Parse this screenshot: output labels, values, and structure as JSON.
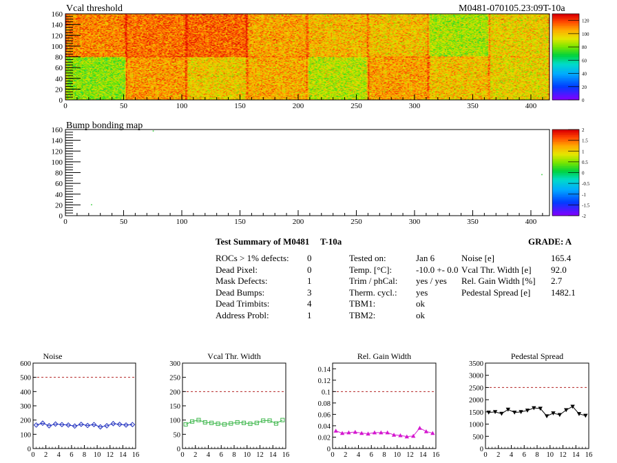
{
  "header": {
    "module_id": "M0481-070105.23:09T-10a"
  },
  "chart_data": [
    {
      "type": "heatmap",
      "title": "Vcal threshold",
      "xlabel": "",
      "ylabel": "",
      "xlim": [
        0,
        416
      ],
      "ylim": [
        0,
        160
      ],
      "x_ticks": [
        0,
        50,
        100,
        150,
        200,
        250,
        300,
        350,
        400
      ],
      "y_ticks": [
        0,
        20,
        40,
        60,
        80,
        100,
        120,
        140,
        160
      ],
      "zlim": [
        0,
        130
      ],
      "z_ticks": [
        0,
        20,
        40,
        60,
        80,
        100,
        120
      ],
      "rocs_top": [
        111,
        114,
        116,
        106,
        103,
        101,
        87,
        98
      ],
      "rocs_bottom": [
        83,
        108,
        99,
        105,
        89,
        107,
        101,
        97
      ]
    },
    {
      "type": "heatmap",
      "title": "Bump bonding map",
      "xlabel": "",
      "ylabel": "",
      "xlim": [
        0,
        416
      ],
      "ylim": [
        0,
        160
      ],
      "x_ticks": [
        0,
        50,
        100,
        150,
        200,
        250,
        300,
        350,
        400
      ],
      "y_ticks": [
        0,
        20,
        40,
        60,
        80,
        100,
        120,
        140,
        160
      ],
      "zlim": [
        -2,
        2
      ],
      "z_ticks": [
        -2,
        -1.5,
        -1,
        -0.5,
        0,
        0.5,
        1,
        1.5,
        2
      ],
      "defects": [
        {
          "x": 75,
          "y": 157
        },
        {
          "x": 22,
          "y": 20
        },
        {
          "x": 409,
          "y": 76
        }
      ]
    },
    {
      "type": "line",
      "title": "Noise",
      "color": "#1f2fbf",
      "marker": "diamond",
      "xlim": [
        0,
        16
      ],
      "ylim": [
        0,
        600
      ],
      "x_ticks": [
        0,
        2,
        4,
        6,
        8,
        10,
        12,
        14,
        16
      ],
      "y_ticks": [
        0,
        100,
        200,
        300,
        400,
        500,
        600
      ],
      "y_tick_labels": [
        "0",
        "100",
        "200",
        "300",
        "400",
        "500",
        "600"
      ],
      "limit": 500,
      "x": [
        0.5,
        1.5,
        2.5,
        3.5,
        4.5,
        5.5,
        6.5,
        7.5,
        8.5,
        9.5,
        10.5,
        11.5,
        12.5,
        13.5,
        14.5,
        15.5
      ],
      "values": [
        165,
        178,
        160,
        172,
        168,
        165,
        158,
        170,
        162,
        168,
        152,
        160,
        175,
        170,
        165,
        168
      ]
    },
    {
      "type": "line",
      "title": "Vcal Thr. Width",
      "color": "#3cb64a",
      "marker": "square",
      "xlim": [
        0,
        16
      ],
      "ylim": [
        0,
        300
      ],
      "x_ticks": [
        0,
        2,
        4,
        6,
        8,
        10,
        12,
        14,
        16
      ],
      "y_ticks": [
        0,
        50,
        100,
        150,
        200,
        250,
        300
      ],
      "y_tick_labels": [
        "0",
        "50",
        "100",
        "150",
        "200",
        "250",
        "300"
      ],
      "limit": 200,
      "x": [
        0.5,
        1.5,
        2.5,
        3.5,
        4.5,
        5.5,
        6.5,
        7.5,
        8.5,
        9.5,
        10.5,
        11.5,
        12.5,
        13.5,
        14.5,
        15.5
      ],
      "values": [
        85,
        95,
        100,
        92,
        90,
        87,
        85,
        88,
        92,
        90,
        87,
        90,
        98,
        98,
        88,
        100
      ]
    },
    {
      "type": "line",
      "title": "Rel. Gain Width",
      "color": "#d417cf",
      "marker": "triangle",
      "xlim": [
        0,
        16
      ],
      "ylim": [
        0,
        0.15
      ],
      "x_ticks": [
        0,
        2,
        4,
        6,
        8,
        10,
        12,
        14,
        16
      ],
      "y_ticks": [
        0,
        0.02,
        0.04,
        0.06,
        0.08,
        0.1,
        0.12,
        0.14
      ],
      "y_tick_labels": [
        "0",
        "0.02",
        "0.04",
        "0.06",
        "0.08",
        "0.1",
        "0.12",
        "0.14"
      ],
      "limit": 0.1,
      "x": [
        0.5,
        1.5,
        2.5,
        3.5,
        4.5,
        5.5,
        6.5,
        7.5,
        8.5,
        9.5,
        10.5,
        11.5,
        12.5,
        13.5,
        14.5,
        15.5
      ],
      "values": [
        0.031,
        0.027,
        0.028,
        0.029,
        0.027,
        0.026,
        0.028,
        0.028,
        0.028,
        0.024,
        0.023,
        0.021,
        0.022,
        0.036,
        0.03,
        0.027
      ]
    },
    {
      "type": "line",
      "title": "Pedestal Spread",
      "color": "#000000",
      "marker": "triangle-down",
      "xlim": [
        0,
        16
      ],
      "ylim": [
        0,
        3500
      ],
      "x_ticks": [
        0,
        2,
        4,
        6,
        8,
        10,
        12,
        14,
        16
      ],
      "y_ticks": [
        0,
        500,
        1000,
        1500,
        2000,
        2500,
        3000,
        3500
      ],
      "y_tick_labels": [
        "0",
        "500",
        "1000",
        "1500",
        "2000",
        "2500",
        "3000",
        "3500"
      ],
      "limit": 2500,
      "x": [
        0.5,
        1.5,
        2.5,
        3.5,
        4.5,
        5.5,
        6.5,
        7.5,
        8.5,
        9.5,
        10.5,
        11.5,
        12.5,
        13.5,
        14.5,
        15.5
      ],
      "values": [
        1480,
        1500,
        1430,
        1600,
        1480,
        1500,
        1560,
        1660,
        1640,
        1330,
        1450,
        1380,
        1580,
        1720,
        1420,
        1350
      ]
    }
  ],
  "summary": {
    "title": "Test Summary of M0481",
    "temp_tag": "T-10a",
    "grade": "GRADE:  A",
    "defects": [
      {
        "label": "ROCs > 1% defects:",
        "value": "0"
      },
      {
        "label": "Dead Pixel:",
        "value": "0"
      },
      {
        "label": "Mask Defects:",
        "value": "1"
      },
      {
        "label": "Dead Bumps:",
        "value": "3"
      },
      {
        "label": "Dead Trimbits:",
        "value": "4"
      },
      {
        "label": "Address Probl:",
        "value": "1"
      }
    ],
    "conditions": [
      {
        "label": "Tested on:",
        "value": "Jan 6"
      },
      {
        "label": "Temp. [°C]:",
        "value": "-10.0 +- 0.0"
      },
      {
        "label": "Trim / phCal:",
        "value": "yes / yes"
      },
      {
        "label": "Therm. cycl.:",
        "value": "yes"
      },
      {
        "label": "TBM1:",
        "value": "ok"
      },
      {
        "label": "TBM2:",
        "value": "ok"
      }
    ],
    "results": [
      {
        "label": "Noise [e]",
        "value": "165.4"
      },
      {
        "label": "Vcal Thr. Width [e]",
        "value": "92.0"
      },
      {
        "label": "Rel. Gain Width [%]",
        "value": "2.7"
      },
      {
        "label": "Pedestal Spread [e]",
        "value": "1482.1"
      }
    ]
  }
}
